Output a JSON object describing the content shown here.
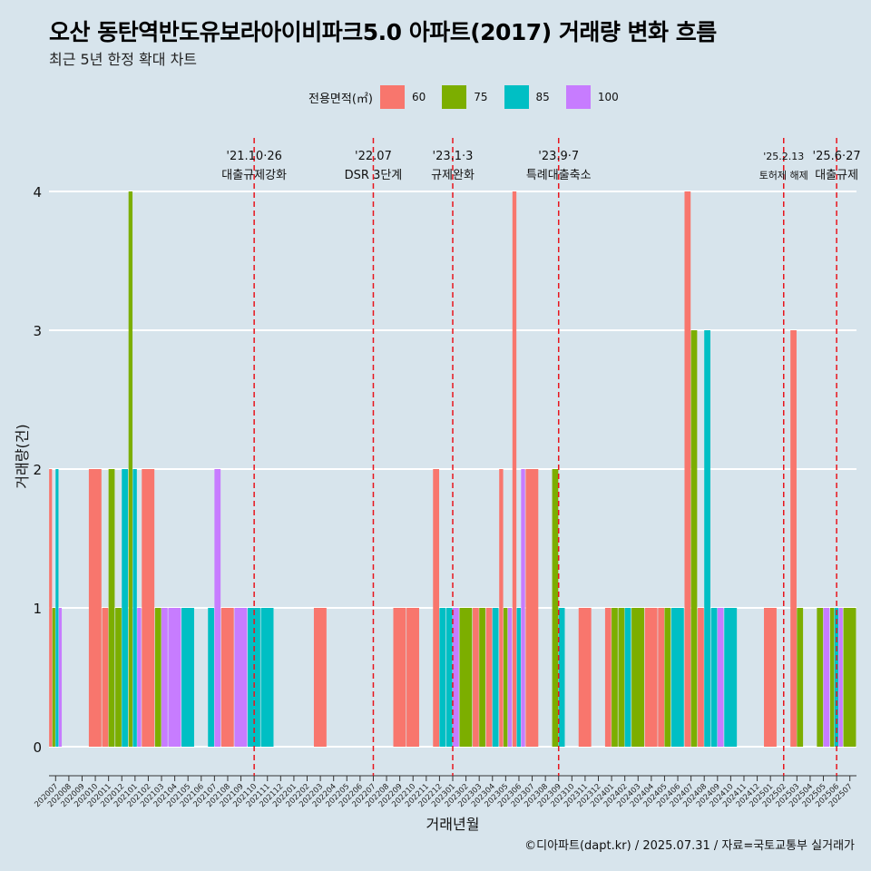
{
  "title": "오산 동탄역반도유보라아이비파크5.0 아파트(2017) 거래량 변화 흐름",
  "subtitle": "최근 5년 한정 확대 차트",
  "caption": "©디아파트(dapt.kr) / 2025.07.31 / 자료=국토교통부 실거래가",
  "chart_data": {
    "type": "bar",
    "xlabel": "거래년월",
    "ylabel": "거래량(건)",
    "ylim": [
      0,
      4
    ],
    "yticks": [
      0,
      1,
      2,
      3,
      4
    ],
    "grid": true,
    "legend": {
      "title": "전용면적(㎡)",
      "position": "top"
    },
    "categories": [
      "202007",
      "202008",
      "202009",
      "202010",
      "202011",
      "202012",
      "202101",
      "202102",
      "202103",
      "202104",
      "202105",
      "202106",
      "202107",
      "202108",
      "202109",
      "202110",
      "202111",
      "202112",
      "202201",
      "202202",
      "202203",
      "202204",
      "202205",
      "202206",
      "202207",
      "202208",
      "202209",
      "202210",
      "202211",
      "202212",
      "202301",
      "202302",
      "202303",
      "202304",
      "202305",
      "202306",
      "202307",
      "202308",
      "202309",
      "202310",
      "202311",
      "202312",
      "202401",
      "202402",
      "202403",
      "202404",
      "202405",
      "202406",
      "202407",
      "202408",
      "202409",
      "202410",
      "202411",
      "202412",
      "202501",
      "202502",
      "202503",
      "202504",
      "202505",
      "202506",
      "202507"
    ],
    "series": [
      {
        "name": "60",
        "color": "#f8766d",
        "values": [
          2,
          0,
          0,
          2,
          1,
          0,
          0,
          2,
          0,
          0,
          0,
          0,
          0,
          1,
          0,
          0,
          0,
          0,
          0,
          0,
          1,
          0,
          0,
          0,
          0,
          0,
          1,
          1,
          0,
          2,
          0,
          0,
          1,
          1,
          2,
          4,
          2,
          0,
          0,
          0,
          1,
          0,
          1,
          0,
          0,
          1,
          1,
          0,
          4,
          1,
          0,
          0,
          0,
          0,
          1,
          0,
          3,
          0,
          0,
          0,
          0
        ]
      },
      {
        "name": "75",
        "color": "#7cae00",
        "values": [
          1,
          0,
          0,
          0,
          2,
          1,
          4,
          0,
          1,
          0,
          0,
          0,
          0,
          0,
          0,
          0,
          0,
          0,
          0,
          0,
          0,
          0,
          0,
          0,
          0,
          0,
          0,
          0,
          0,
          0,
          0,
          1,
          1,
          0,
          1,
          0,
          0,
          0,
          2,
          0,
          0,
          0,
          1,
          1,
          1,
          0,
          1,
          0,
          3,
          0,
          0,
          0,
          0,
          0,
          0,
          0,
          1,
          0,
          1,
          1,
          1
        ]
      },
      {
        "name": "85",
        "color": "#00bfc4",
        "values": [
          2,
          0,
          0,
          0,
          0,
          2,
          2,
          0,
          0,
          0,
          1,
          0,
          1,
          0,
          0,
          1,
          1,
          0,
          0,
          0,
          0,
          0,
          0,
          0,
          0,
          0,
          0,
          0,
          0,
          1,
          1,
          0,
          0,
          1,
          0,
          1,
          0,
          0,
          1,
          0,
          0,
          0,
          0,
          1,
          0,
          0,
          0,
          1,
          0,
          3,
          1,
          1,
          0,
          0,
          0,
          0,
          0,
          0,
          0,
          1,
          0
        ]
      },
      {
        "name": "100",
        "color": "#c77cff",
        "values": [
          1,
          0,
          0,
          0,
          0,
          0,
          1,
          0,
          1,
          1,
          0,
          0,
          2,
          0,
          1,
          0,
          0,
          0,
          0,
          0,
          0,
          0,
          0,
          0,
          0,
          0,
          0,
          0,
          0,
          0,
          1,
          0,
          0,
          0,
          1,
          2,
          0,
          0,
          0,
          0,
          0,
          0,
          0,
          0,
          0,
          0,
          0,
          0,
          0,
          0,
          1,
          0,
          0,
          0,
          0,
          0,
          0,
          0,
          1,
          1,
          0
        ]
      }
    ],
    "annotations": [
      {
        "category": "202110",
        "date": "'21.10·26",
        "label": "대출규제강화"
      },
      {
        "category": "202207",
        "date": "'22.07",
        "label": "DSR 3단계"
      },
      {
        "category": "202301",
        "date": "'23.1·3",
        "label": "규제완화"
      },
      {
        "category": "202309",
        "date": "'23.9·7",
        "label": "특례대출축소"
      },
      {
        "category": "202502",
        "date": "'25.2.13",
        "label": "토허제 해제"
      },
      {
        "category": "202506",
        "date": "'25.6·27",
        "label": "대출규제"
      }
    ]
  }
}
